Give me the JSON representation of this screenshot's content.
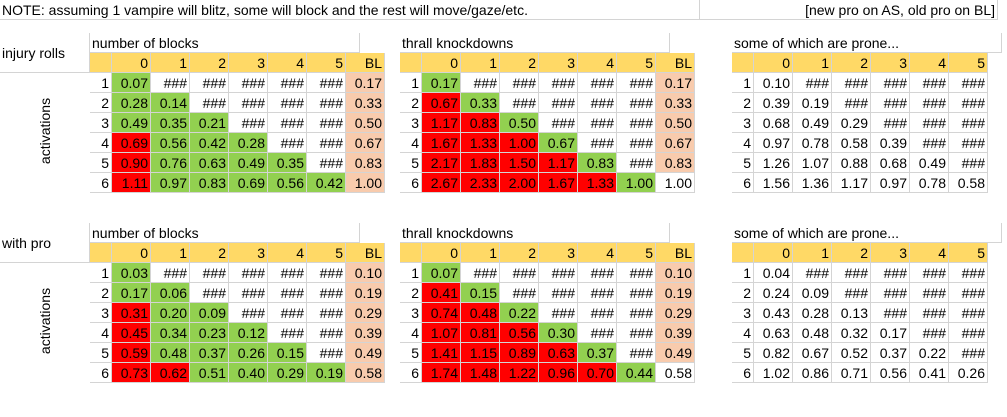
{
  "note": "NOTE: assuming 1 vampire will blitz, some will block and the rest will move/gaze/etc.",
  "note_right": "[new pro on AS, old pro on BL]",
  "sections": [
    {
      "label": "injury rolls",
      "side_label": "activations",
      "tables": [
        {
          "title": "number of blocks",
          "headers": [
            "0",
            "1",
            "2",
            "3",
            "4",
            "5",
            "BL"
          ],
          "rows": [
            {
              "act": "1",
              "cells": [
                "0.07",
                "###",
                "###",
                "###",
                "###",
                "###",
                "0.17"
              ],
              "colors": [
                "g",
                "w",
                "w",
                "w",
                "w",
                "w",
                "pk"
              ]
            },
            {
              "act": "2",
              "cells": [
                "0.28",
                "0.14",
                "###",
                "###",
                "###",
                "###",
                "0.33"
              ],
              "colors": [
                "g",
                "g",
                "w",
                "w",
                "w",
                "w",
                "pk"
              ]
            },
            {
              "act": "3",
              "cells": [
                "0.49",
                "0.35",
                "0.21",
                "###",
                "###",
                "###",
                "0.50"
              ],
              "colors": [
                "g",
                "g",
                "g",
                "w",
                "w",
                "w",
                "pk"
              ]
            },
            {
              "act": "4",
              "cells": [
                "0.69",
                "0.56",
                "0.42",
                "0.28",
                "###",
                "###",
                "0.67"
              ],
              "colors": [
                "red",
                "g",
                "g",
                "g",
                "w",
                "w",
                "pk"
              ]
            },
            {
              "act": "5",
              "cells": [
                "0.90",
                "0.76",
                "0.63",
                "0.49",
                "0.35",
                "###",
                "0.83"
              ],
              "colors": [
                "red",
                "g",
                "g",
                "g",
                "g",
                "w",
                "pk"
              ]
            },
            {
              "act": "6",
              "cells": [
                "1.11",
                "0.97",
                "0.83",
                "0.69",
                "0.56",
                "0.42",
                "1.00"
              ],
              "colors": [
                "red",
                "g",
                "g",
                "g",
                "g",
                "g",
                "pk"
              ]
            }
          ]
        },
        {
          "title": "thrall knockdowns",
          "headers": [
            "0",
            "1",
            "2",
            "3",
            "4",
            "5",
            "BL"
          ],
          "rows": [
            {
              "act": "1",
              "cells": [
                "0.17",
                "###",
                "###",
                "###",
                "###",
                "###",
                "0.17"
              ],
              "colors": [
                "g",
                "w",
                "w",
                "w",
                "w",
                "w",
                "pk"
              ]
            },
            {
              "act": "2",
              "cells": [
                "0.67",
                "0.33",
                "###",
                "###",
                "###",
                "###",
                "0.33"
              ],
              "colors": [
                "red",
                "g",
                "w",
                "w",
                "w",
                "w",
                "pk"
              ]
            },
            {
              "act": "3",
              "cells": [
                "1.17",
                "0.83",
                "0.50",
                "###",
                "###",
                "###",
                "0.50"
              ],
              "colors": [
                "red",
                "red",
                "g",
                "w",
                "w",
                "w",
                "pk"
              ]
            },
            {
              "act": "4",
              "cells": [
                "1.67",
                "1.33",
                "1.00",
                "0.67",
                "###",
                "###",
                "0.67"
              ],
              "colors": [
                "red",
                "red",
                "red",
                "g",
                "w",
                "w",
                "pk"
              ]
            },
            {
              "act": "5",
              "cells": [
                "2.17",
                "1.83",
                "1.50",
                "1.17",
                "0.83",
                "###",
                "0.83"
              ],
              "colors": [
                "red",
                "red",
                "red",
                "red",
                "g",
                "w",
                "pk"
              ]
            },
            {
              "act": "6",
              "cells": [
                "2.67",
                "2.33",
                "2.00",
                "1.67",
                "1.33",
                "1.00",
                "1.00"
              ],
              "colors": [
                "red",
                "red",
                "red",
                "red",
                "red",
                "g",
                "w"
              ]
            }
          ]
        },
        {
          "title": "some of which are prone...",
          "headers": [
            "0",
            "1",
            "2",
            "3",
            "4",
            "5"
          ],
          "rows": [
            {
              "act": "1",
              "cells": [
                "0.10",
                "###",
                "###",
                "###",
                "###",
                "###"
              ]
            },
            {
              "act": "2",
              "cells": [
                "0.39",
                "0.19",
                "###",
                "###",
                "###",
                "###"
              ]
            },
            {
              "act": "3",
              "cells": [
                "0.68",
                "0.49",
                "0.29",
                "###",
                "###",
                "###"
              ]
            },
            {
              "act": "4",
              "cells": [
                "0.97",
                "0.78",
                "0.58",
                "0.39",
                "###",
                "###"
              ]
            },
            {
              "act": "5",
              "cells": [
                "1.26",
                "1.07",
                "0.88",
                "0.68",
                "0.49",
                "###"
              ]
            },
            {
              "act": "6",
              "cells": [
                "1.56",
                "1.36",
                "1.17",
                "0.97",
                "0.78",
                "0.58"
              ]
            }
          ]
        }
      ]
    },
    {
      "label": "with pro",
      "side_label": "activations",
      "tables": [
        {
          "title": "number of blocks",
          "headers": [
            "0",
            "1",
            "2",
            "3",
            "4",
            "5",
            "BL"
          ],
          "rows": [
            {
              "act": "1",
              "cells": [
                "0.03",
                "###",
                "###",
                "###",
                "###",
                "###",
                "0.10"
              ],
              "colors": [
                "g",
                "w",
                "w",
                "w",
                "w",
                "w",
                "pk"
              ]
            },
            {
              "act": "2",
              "cells": [
                "0.17",
                "0.06",
                "###",
                "###",
                "###",
                "###",
                "0.19"
              ],
              "colors": [
                "g",
                "g",
                "w",
                "w",
                "w",
                "w",
                "pk"
              ]
            },
            {
              "act": "3",
              "cells": [
                "0.31",
                "0.20",
                "0.09",
                "###",
                "###",
                "###",
                "0.29"
              ],
              "colors": [
                "red",
                "g",
                "g",
                "w",
                "w",
                "w",
                "pk"
              ]
            },
            {
              "act": "4",
              "cells": [
                "0.45",
                "0.34",
                "0.23",
                "0.12",
                "###",
                "###",
                "0.39"
              ],
              "colors": [
                "red",
                "g",
                "g",
                "g",
                "w",
                "w",
                "pk"
              ]
            },
            {
              "act": "5",
              "cells": [
                "0.59",
                "0.48",
                "0.37",
                "0.26",
                "0.15",
                "###",
                "0.49"
              ],
              "colors": [
                "red",
                "g",
                "g",
                "g",
                "g",
                "w",
                "pk"
              ]
            },
            {
              "act": "6",
              "cells": [
                "0.73",
                "0.62",
                "0.51",
                "0.40",
                "0.29",
                "0.19",
                "0.58"
              ],
              "colors": [
                "red",
                "red",
                "g",
                "g",
                "g",
                "g",
                "pk"
              ]
            }
          ]
        },
        {
          "title": "thrall knockdowns",
          "headers": [
            "0",
            "1",
            "2",
            "3",
            "4",
            "5",
            "BL"
          ],
          "rows": [
            {
              "act": "1",
              "cells": [
                "0.07",
                "###",
                "###",
                "###",
                "###",
                "###",
                "0.10"
              ],
              "colors": [
                "g",
                "w",
                "w",
                "w",
                "w",
                "w",
                "pk"
              ]
            },
            {
              "act": "2",
              "cells": [
                "0.41",
                "0.15",
                "###",
                "###",
                "###",
                "###",
                "0.19"
              ],
              "colors": [
                "red",
                "g",
                "w",
                "w",
                "w",
                "w",
                "pk"
              ]
            },
            {
              "act": "3",
              "cells": [
                "0.74",
                "0.48",
                "0.22",
                "###",
                "###",
                "###",
                "0.29"
              ],
              "colors": [
                "red",
                "red",
                "g",
                "w",
                "w",
                "w",
                "pk"
              ]
            },
            {
              "act": "4",
              "cells": [
                "1.07",
                "0.81",
                "0.56",
                "0.30",
                "###",
                "###",
                "0.39"
              ],
              "colors": [
                "red",
                "red",
                "red",
                "g",
                "w",
                "w",
                "pk"
              ]
            },
            {
              "act": "5",
              "cells": [
                "1.41",
                "1.15",
                "0.89",
                "0.63",
                "0.37",
                "###",
                "0.49"
              ],
              "colors": [
                "red",
                "red",
                "red",
                "red",
                "g",
                "w",
                "pk"
              ]
            },
            {
              "act": "6",
              "cells": [
                "1.74",
                "1.48",
                "1.22",
                "0.96",
                "0.70",
                "0.44",
                "0.58"
              ],
              "colors": [
                "red",
                "red",
                "red",
                "red",
                "red",
                "g",
                "w"
              ]
            }
          ]
        },
        {
          "title": "some of which are prone...",
          "headers": [
            "0",
            "1",
            "2",
            "3",
            "4",
            "5"
          ],
          "rows": [
            {
              "act": "1",
              "cells": [
                "0.04",
                "###",
                "###",
                "###",
                "###",
                "###"
              ]
            },
            {
              "act": "2",
              "cells": [
                "0.24",
                "0.09",
                "###",
                "###",
                "###",
                "###"
              ]
            },
            {
              "act": "3",
              "cells": [
                "0.43",
                "0.28",
                "0.13",
                "###",
                "###",
                "###"
              ]
            },
            {
              "act": "4",
              "cells": [
                "0.63",
                "0.48",
                "0.32",
                "0.17",
                "###",
                "###"
              ]
            },
            {
              "act": "5",
              "cells": [
                "0.82",
                "0.67",
                "0.52",
                "0.37",
                "0.22",
                "###"
              ]
            },
            {
              "act": "6",
              "cells": [
                "1.02",
                "0.86",
                "0.71",
                "0.56",
                "0.41",
                "0.26"
              ]
            }
          ]
        }
      ]
    }
  ],
  "colors": {
    "header": "#ffd966",
    "green": "#92d050",
    "red": "#ff0000",
    "peach": "#f8cbad",
    "grid": "#d4d4d4"
  }
}
